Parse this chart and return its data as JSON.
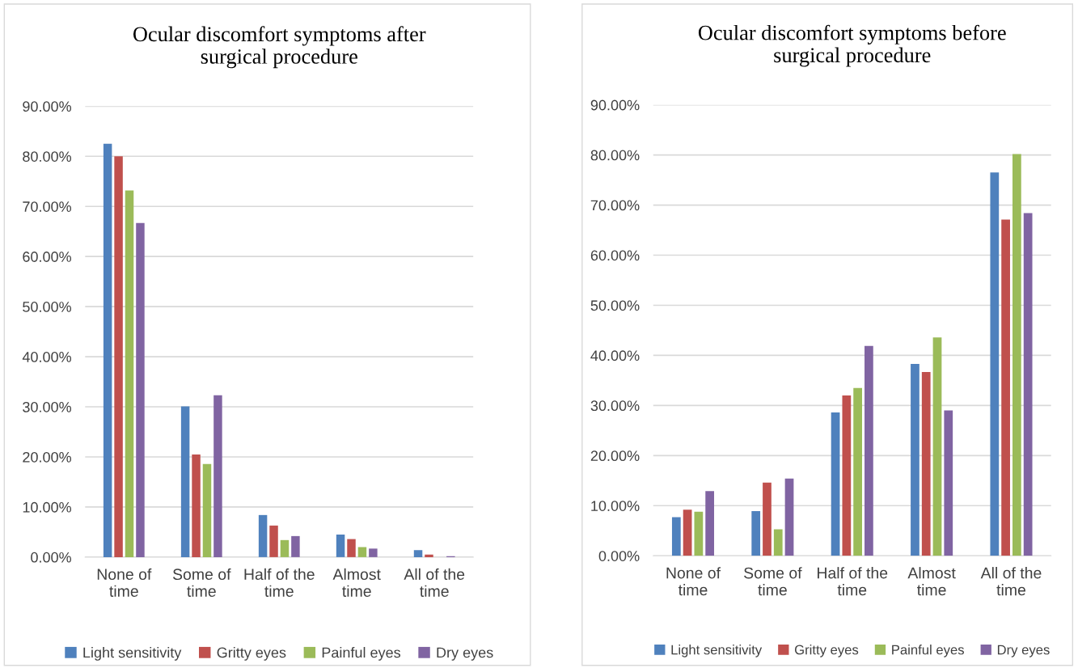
{
  "chart_data": [
    {
      "type": "bar",
      "title": "Ocular discomfort symptoms after\nsurgical procedure",
      "categories": [
        "None of time",
        "Some of time",
        "Half of the time",
        "Almost time",
        "All of the time"
      ],
      "series": [
        {
          "name": "Light sensitivity",
          "color": "#4f81bd",
          "values": [
            82.5,
            30.1,
            8.4,
            4.5,
            1.4
          ]
        },
        {
          "name": "Gritty eyes",
          "color": "#c0504d",
          "values": [
            80.0,
            20.5,
            6.3,
            3.6,
            0.5
          ]
        },
        {
          "name": "Painful eyes",
          "color": "#9bbb59",
          "values": [
            73.2,
            18.6,
            3.4,
            2.0,
            0
          ]
        },
        {
          "name": "Dry eyes",
          "color": "#8064a2",
          "values": [
            66.7,
            32.3,
            4.2,
            1.7,
            0.2
          ]
        }
      ],
      "ylim": [
        0,
        90
      ],
      "yticks": [
        {
          "value": 0,
          "label": "0.00%"
        },
        {
          "value": 10,
          "label": "10.00%"
        },
        {
          "value": 20,
          "label": "20.00%"
        },
        {
          "value": 30,
          "label": "30.00%"
        },
        {
          "value": 40,
          "label": "40.00%"
        },
        {
          "value": 50,
          "label": "50.00%"
        },
        {
          "value": 60,
          "label": "60.00%"
        },
        {
          "value": 70,
          "label": "70.00%"
        },
        {
          "value": 80,
          "label": "80.00%"
        },
        {
          "value": 90,
          "label": "90.00%"
        }
      ],
      "grid": "y",
      "legend": "bottom"
    },
    {
      "type": "bar",
      "title": "Ocular discomfort symptoms before\nsurgical procedure",
      "categories": [
        "None of time",
        "Some of time",
        "Half of the time",
        "Almost time",
        "All of the time"
      ],
      "series": [
        {
          "name": "Light sensitivity",
          "color": "#4f81bd",
          "values": [
            7.7,
            8.9,
            28.6,
            38.3,
            76.5
          ]
        },
        {
          "name": "Gritty eyes",
          "color": "#c0504d",
          "values": [
            9.2,
            14.6,
            32.0,
            36.7,
            67.1
          ]
        },
        {
          "name": "Painful eyes",
          "color": "#9bbb59",
          "values": [
            8.8,
            5.3,
            33.5,
            43.6,
            80.2
          ]
        },
        {
          "name": "Dry eyes",
          "color": "#8064a2",
          "values": [
            12.9,
            15.4,
            41.9,
            29.0,
            68.4
          ]
        }
      ],
      "ylim": [
        0,
        90
      ],
      "yticks": [
        {
          "value": 0,
          "label": "0.00%"
        },
        {
          "value": 10,
          "label": "10.00%"
        },
        {
          "value": 20,
          "label": "20.00%"
        },
        {
          "value": 30,
          "label": "30.00%"
        },
        {
          "value": 40,
          "label": "40.00%"
        },
        {
          "value": 50,
          "label": "50.00%"
        },
        {
          "value": 60,
          "label": "60.00%"
        },
        {
          "value": 70,
          "label": "70.00%"
        },
        {
          "value": 80,
          "label": "80.00%"
        },
        {
          "value": 90,
          "label": "90.00%"
        }
      ],
      "grid": "y",
      "legend": "bottom"
    }
  ]
}
